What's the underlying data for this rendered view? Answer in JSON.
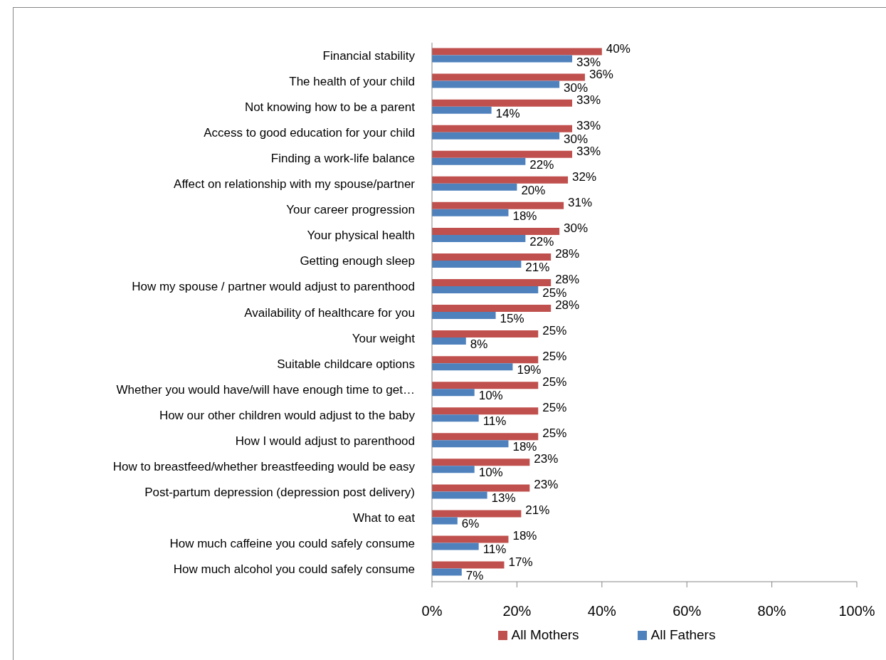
{
  "chart_data": {
    "type": "bar",
    "orientation": "horizontal",
    "categories": [
      "Financial stability",
      "The health of your child",
      "Not knowing how to be a parent",
      "Access to good education for your child",
      "Finding a work-life balance",
      "Affect on relationship with my spouse/partner",
      "Your career progression",
      "Your physical health",
      "Getting enough sleep",
      "How my spouse / partner would adjust to parenthood",
      "Availability of healthcare for you",
      "Your weight",
      "Suitable childcare options",
      "Whether you would have/will have enough time to get…",
      "How our other children would adjust to the baby",
      "How I would adjust to parenthood",
      "How to breastfeed/whether breastfeeding would be easy",
      "Post-partum depression (depression post delivery)",
      "What to eat",
      "How much caffeine you could safely consume",
      "How much alcohol you could safely consume"
    ],
    "series": [
      {
        "name": "All Mothers",
        "color": "#c0504d",
        "values": [
          40,
          36,
          33,
          33,
          33,
          32,
          31,
          30,
          28,
          28,
          28,
          25,
          25,
          25,
          25,
          25,
          23,
          23,
          21,
          18,
          17
        ],
        "value_labels": [
          "40%",
          "36%",
          "33%",
          "33%",
          "33%",
          "32%",
          "31%",
          "30%",
          "28%",
          "28%",
          "28%",
          "25%",
          "25%",
          "25%",
          "25%",
          "25%",
          "23%",
          "23%",
          "21%",
          "18%",
          "17%"
        ]
      },
      {
        "name": "All Fathers",
        "color": "#4f81bd",
        "values": [
          33,
          30,
          14,
          30,
          22,
          20,
          18,
          22,
          21,
          25,
          15,
          8,
          19,
          10,
          11,
          18,
          10,
          13,
          6,
          11,
          7
        ],
        "value_labels": [
          "33%",
          "30%",
          "14%",
          "30%",
          "22%",
          "20%",
          "18%",
          "22%",
          "21%",
          "25%",
          "15%",
          "8%",
          "19%",
          "10%",
          "11%",
          "18%",
          "10%",
          "13%",
          "6%",
          "11%",
          "7%"
        ]
      }
    ],
    "xlim": [
      0,
      100
    ],
    "xticks": [
      {
        "value": 0,
        "label": "0%"
      },
      {
        "value": 20,
        "label": "20%"
      },
      {
        "value": 40,
        "label": "40%"
      },
      {
        "value": 60,
        "label": "60%"
      },
      {
        "value": 80,
        "label": "80%"
      },
      {
        "value": 100,
        "label": "100%"
      }
    ],
    "legend": "bottom"
  }
}
